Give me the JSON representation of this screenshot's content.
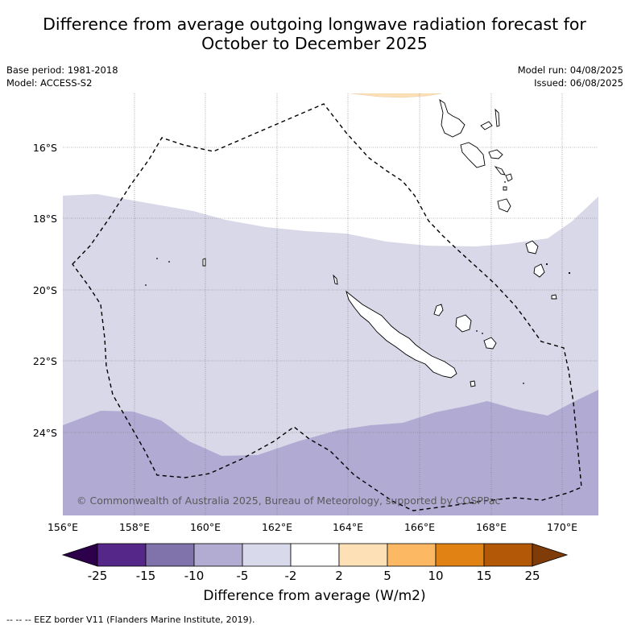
{
  "title": {
    "line1": "Difference from average outgoing longwave radiation forecast for",
    "line2": "October to December 2025"
  },
  "meta": {
    "base_period": "Base period: 1981-2018",
    "model": "Model: ACCESS-S2",
    "model_run": "Model run: 04/08/2025",
    "issued": "Issued: 06/08/2025"
  },
  "map": {
    "lon_labels": [
      "156°E",
      "158°E",
      "160°E",
      "162°E",
      "164°E",
      "166°E",
      "168°E",
      "170°E"
    ],
    "lat_labels": [
      "16°S",
      "18°S",
      "20°S",
      "22°S",
      "24°S"
    ],
    "copyright": "© Commonwealth of Australia 2025, Bureau of Meteorology, supported by COSPPac",
    "category_colors": {
      "minus_2_to_minus_5": "#d8d8e8",
      "minus_5_to_minus_10": "#b1aad3",
      "plus_2_to_plus_5": "#fee0b6"
    }
  },
  "colorbar": {
    "ticks": [
      "-25",
      "-15",
      "-10",
      "-5",
      "-2",
      "2",
      "5",
      "10",
      "15",
      "25"
    ],
    "colors": [
      "#2d004b",
      "#542788",
      "#8073ac",
      "#b2abd2",
      "#d8daeb",
      "#ffffff",
      "#fee0b6",
      "#fdb863",
      "#e08214",
      "#b35806",
      "#7f3b08"
    ],
    "title": "Difference from average (W/m2)"
  },
  "footer": "-- -- -- EEZ border V11 (Flanders Marine Institute, 2019)."
}
